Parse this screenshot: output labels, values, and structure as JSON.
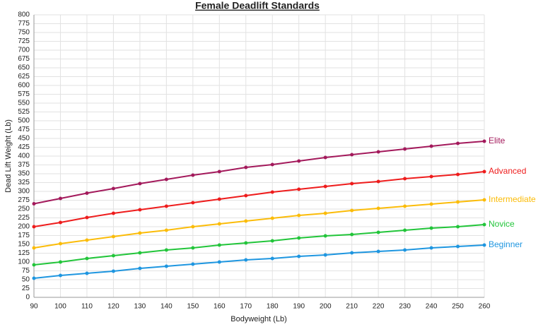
{
  "chart_data": {
    "type": "line",
    "title": "Female Deadlift Standards",
    "x_label": "Bodyweight (Lb)",
    "y_label": "Dead Lift Weight (Lb)",
    "x": [
      90,
      100,
      110,
      120,
      130,
      140,
      150,
      160,
      170,
      180,
      190,
      200,
      210,
      220,
      230,
      240,
      250,
      260
    ],
    "xlim": [
      90,
      260
    ],
    "xticks": [
      90,
      100,
      110,
      120,
      130,
      140,
      150,
      160,
      170,
      180,
      190,
      200,
      210,
      220,
      230,
      240,
      250,
      260
    ],
    "ylim": [
      0,
      800
    ],
    "yticks": [
      0,
      25,
      50,
      75,
      100,
      125,
      150,
      175,
      200,
      225,
      250,
      275,
      300,
      325,
      350,
      375,
      400,
      425,
      450,
      475,
      500,
      525,
      550,
      575,
      600,
      625,
      650,
      675,
      700,
      725,
      750,
      775,
      800
    ],
    "grid": true,
    "legend": "right",
    "series": [
      {
        "name": "Elite",
        "color": "#a3195b",
        "values": [
          265,
          280,
          295,
          308,
          322,
          334,
          346,
          356,
          368,
          376,
          386,
          396,
          404,
          412,
          420,
          428,
          436,
          442
        ]
      },
      {
        "name": "Advanced",
        "color": "#ee1c1c",
        "values": [
          200,
          212,
          226,
          238,
          248,
          258,
          268,
          278,
          288,
          298,
          306,
          314,
          322,
          328,
          336,
          342,
          348,
          356
        ]
      },
      {
        "name": "Intermediate",
        "color": "#fbbc09",
        "values": [
          140,
          152,
          162,
          172,
          182,
          190,
          200,
          208,
          216,
          224,
          232,
          238,
          246,
          252,
          258,
          264,
          270,
          276
        ]
      },
      {
        "name": "Novice",
        "color": "#22c53a",
        "values": [
          92,
          100,
          110,
          118,
          126,
          134,
          140,
          148,
          154,
          160,
          168,
          174,
          178,
          184,
          190,
          196,
          200,
          206
        ]
      },
      {
        "name": "Beginner",
        "color": "#1e96e0",
        "values": [
          54,
          62,
          68,
          74,
          82,
          88,
          94,
          100,
          106,
          110,
          116,
          120,
          126,
          130,
          134,
          140,
          144,
          148
        ]
      }
    ]
  }
}
